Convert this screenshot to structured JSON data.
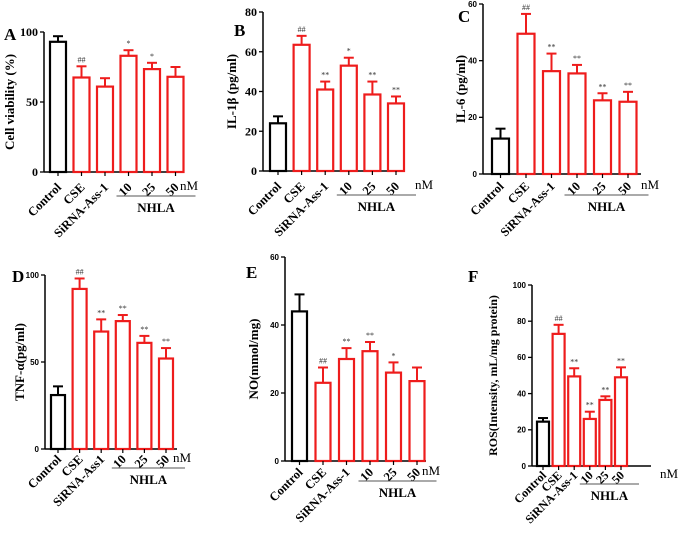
{
  "figure": {
    "unit_label": "nM",
    "group_label": "NHLA",
    "colors": {
      "control": "#000000",
      "treatment": "#ee1c1c",
      "axis": "#000000",
      "group_line": "#555555"
    }
  },
  "chart_data": [
    {
      "panel": "A",
      "type": "bar",
      "title": "",
      "xlabel": "",
      "ylabel": "Cell viability (%)",
      "ylim": [
        0,
        100
      ],
      "yticks": [
        0,
        50,
        100
      ],
      "categories": [
        "Control",
        "CSE",
        "SiRNA-Ass-1",
        "10",
        "25",
        "50"
      ],
      "values": [
        93,
        67.5,
        61,
        83,
        73.5,
        68
      ],
      "errors": [
        4,
        8,
        6,
        4,
        4.5,
        7
      ],
      "annotations": [
        "",
        "##",
        "",
        "*",
        "*",
        ""
      ],
      "group": {
        "label": "NHLA",
        "categories": [
          "10",
          "25",
          "50"
        ],
        "unit": "nM"
      },
      "grid": false,
      "legend": "none"
    },
    {
      "panel": "B",
      "type": "bar",
      "title": "",
      "xlabel": "",
      "ylabel": "IL-1β (pg/ml)",
      "ylim": [
        0,
        80
      ],
      "yticks": [
        0,
        20,
        40,
        60,
        80
      ],
      "categories": [
        "Control",
        "CSE",
        "SiRNA-Ass-1",
        "10",
        "25",
        "50"
      ],
      "values": [
        24,
        63.5,
        41,
        53,
        38.5,
        34
      ],
      "errors": [
        3.5,
        4.5,
        4,
        4,
        6.5,
        3.5
      ],
      "annotations": [
        "",
        "##",
        "**",
        "*",
        "**",
        "**"
      ],
      "group": {
        "label": "NHLA",
        "categories": [
          "10",
          "25",
          "50"
        ],
        "unit": "nM"
      },
      "grid": false,
      "legend": "none"
    },
    {
      "panel": "C",
      "type": "bar",
      "title": "",
      "xlabel": "",
      "ylabel": "IL-6 (pg/ml)",
      "ylim": [
        0,
        60
      ],
      "yticks": [
        0,
        20,
        40,
        60
      ],
      "categories": [
        "Control",
        "CSE",
        "SiRNA-Ass-1",
        "10",
        "25",
        "50"
      ],
      "values": [
        12.5,
        49.5,
        36.3,
        35.5,
        26,
        25.5
      ],
      "errors": [
        3.5,
        7,
        6.2,
        3,
        2.5,
        3.5
      ],
      "annotations": [
        "",
        "##",
        "**",
        "**",
        "**",
        "**"
      ],
      "group": {
        "label": "NHLA",
        "categories": [
          "10",
          "25",
          "50"
        ],
        "unit": "nM"
      },
      "grid": false,
      "legend": "none"
    },
    {
      "panel": "D",
      "type": "bar",
      "title": "",
      "xlabel": "",
      "ylabel": "TNF-α(pg/ml)",
      "ylim": [
        0,
        100
      ],
      "yticks": [
        0,
        50,
        100
      ],
      "categories": [
        "Control",
        "CSE",
        "SiRNA-Ass1",
        "10",
        "25",
        "50"
      ],
      "values": [
        31,
        92,
        67.5,
        73.5,
        61,
        52
      ],
      "errors": [
        5,
        6,
        7,
        3.5,
        4,
        6
      ],
      "annotations": [
        "",
        "##",
        "**",
        "**",
        "**",
        "**"
      ],
      "group": {
        "label": "NHLA",
        "categories": [
          "10",
          "25",
          "50"
        ],
        "unit": "nM"
      },
      "grid": false,
      "legend": "none"
    },
    {
      "panel": "E",
      "type": "bar",
      "title": "",
      "xlabel": "",
      "ylabel": "NO(mmol/mg)",
      "ylim": [
        0,
        60
      ],
      "yticks": [
        0,
        20,
        40,
        60
      ],
      "categories": [
        "Control",
        "CSE",
        "SiRNA-Ass-1",
        "10",
        "25",
        "50"
      ],
      "values": [
        44,
        23,
        30,
        32.3,
        26,
        23.5
      ],
      "errors": [
        5,
        4.5,
        3.2,
        2.7,
        3,
        4
      ],
      "annotations": [
        "",
        "##",
        "**",
        "**",
        "*",
        ""
      ],
      "group": {
        "label": "NHLA",
        "categories": [
          "10",
          "25",
          "50"
        ],
        "unit": "nM"
      },
      "grid": false,
      "legend": "none"
    },
    {
      "panel": "F",
      "type": "bar",
      "title": "",
      "xlabel": "",
      "ylabel": "ROS(Intensity, mL/mg protein)",
      "ylim": [
        0,
        100
      ],
      "yticks": [
        0,
        20,
        40,
        60,
        80,
        100
      ],
      "categories": [
        "Control",
        "CSE",
        "SiRNA-Ass-1",
        "10",
        "25",
        "50"
      ],
      "values": [
        24.5,
        73,
        49.5,
        26,
        36.5,
        49
      ],
      "errors": [
        2,
        5,
        4.5,
        4,
        2,
        5.5
      ],
      "annotations": [
        "",
        "##",
        "**",
        "**",
        "**",
        "**"
      ],
      "group": {
        "label": "NHLA",
        "categories": [
          "10",
          "25",
          "50"
        ],
        "unit": "nM"
      },
      "grid": false,
      "legend": "none"
    }
  ]
}
